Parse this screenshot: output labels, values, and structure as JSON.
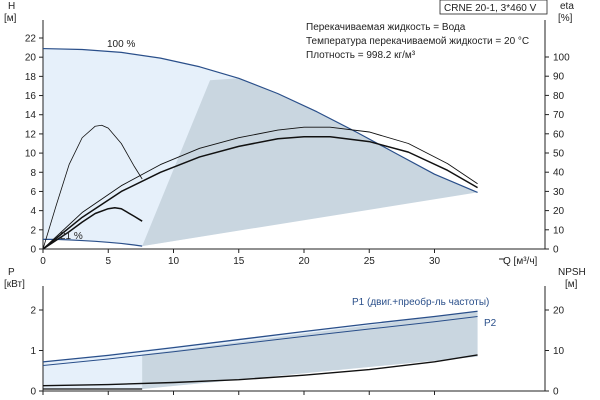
{
  "title": "CRNE 20-1, 3*460 V",
  "info_lines": [
    "Перекачиваемая жидкость = Вода",
    "Температура перекачиваемой жидкости = 20 °C",
    "Плотность = 998.2 кг/м³"
  ],
  "colors": {
    "axis": "#222222",
    "curve_blue": "#2a4f8a",
    "curve_black": "#111111",
    "region_light": "#e6f0fa",
    "region_dark": "#c9d6e0"
  },
  "chart_data": [
    {
      "type": "line",
      "name": "head-efficiency",
      "y_axis_label": {
        "symbol": "H",
        "unit": "[м]"
      },
      "y2_axis_label": {
        "symbol": "eta",
        "unit": "[%]"
      },
      "x_axis_label": "Q [м³/ч]",
      "x_ticks": [
        0,
        5,
        10,
        15,
        20,
        25,
        30
      ],
      "y_ticks": [
        0,
        2,
        4,
        6,
        8,
        10,
        12,
        14,
        16,
        18,
        20,
        22
      ],
      "y2_ticks": [
        0,
        10,
        20,
        30,
        40,
        50,
        60,
        70,
        80,
        90,
        100
      ],
      "xlim": [
        0,
        35
      ],
      "ylim": [
        0,
        24
      ],
      "y2lim": [
        0,
        120
      ],
      "speed_labels": [
        "100 %",
        "21 %"
      ],
      "series": [
        {
          "x": [
            0,
            3,
            6,
            9,
            12,
            15,
            18,
            21,
            24,
            27,
            30,
            33.3
          ],
          "y": [
            20.9,
            20.8,
            20.5,
            19.9,
            19.0,
            17.8,
            16.2,
            14.3,
            12.2,
            10.0,
            7.8,
            5.9
          ]
        },
        {
          "x": [
            0,
            1,
            2,
            3,
            4,
            5,
            6,
            7,
            7.6
          ],
          "y": [
            1.0,
            1.0,
            0.95,
            0.88,
            0.8,
            0.7,
            0.58,
            0.42,
            0.3
          ]
        },
        {
          "x": [
            0,
            3,
            6,
            9,
            12,
            15,
            18,
            20,
            22,
            25,
            28,
            31,
            33.3
          ],
          "y": [
            0,
            3.8,
            6.6,
            8.8,
            10.5,
            11.6,
            12.4,
            12.7,
            12.7,
            12.2,
            11.0,
            8.9,
            6.8
          ]
        },
        {
          "x": [
            0,
            3,
            6,
            9,
            12,
            15,
            18,
            20,
            22,
            25,
            28,
            31,
            33.3
          ],
          "y": [
            0,
            3.3,
            6.0,
            8.0,
            9.6,
            10.7,
            11.5,
            11.7,
            11.7,
            11.2,
            10.1,
            8.2,
            6.4
          ]
        },
        {
          "x": [
            0,
            1,
            2,
            3,
            4,
            4.5,
            5,
            6,
            7,
            7.6
          ],
          "y": [
            0,
            4.5,
            8.8,
            11.6,
            12.8,
            12.9,
            12.6,
            11.0,
            8.6,
            7.3
          ]
        },
        {
          "x": [
            0,
            1,
            2,
            3,
            4,
            5,
            5.5,
            6,
            7,
            7.6
          ],
          "y": [
            0,
            0.9,
            1.8,
            2.8,
            3.7,
            4.2,
            4.3,
            4.2,
            3.4,
            2.9
          ]
        }
      ]
    },
    {
      "type": "line",
      "name": "power-npsh",
      "y_axis_label": {
        "symbol": "P",
        "unit": "[кВт]"
      },
      "y2_axis_label": {
        "symbol": "NPSH",
        "unit": "[м]"
      },
      "y_ticks": [
        0,
        1,
        2
      ],
      "y2_ticks": [
        0,
        10,
        20
      ],
      "xlim": [
        0,
        35
      ],
      "ylim": [
        0,
        2.5
      ],
      "y2lim": [
        0,
        25
      ],
      "series": [
        {
          "name": "P1 (двиг.+преобр-ль частоты)",
          "x": [
            0,
            5,
            10,
            15,
            20,
            25,
            30,
            33.3
          ],
          "y": [
            0.72,
            0.88,
            1.07,
            1.27,
            1.47,
            1.66,
            1.84,
            1.97
          ]
        },
        {
          "name": "P2",
          "x": [
            0,
            5,
            10,
            15,
            20,
            25,
            30,
            33.3
          ],
          "y": [
            0.63,
            0.79,
            0.97,
            1.16,
            1.35,
            1.53,
            1.71,
            1.84
          ]
        },
        {
          "x": [
            0,
            5,
            10,
            15,
            20,
            25,
            30,
            33.3
          ],
          "y": [
            0.13,
            0.16,
            0.21,
            0.28,
            0.39,
            0.53,
            0.72,
            0.89
          ]
        },
        {
          "x": [
            0,
            2,
            4,
            6,
            7.6
          ],
          "y": [
            0.05,
            0.05,
            0.05,
            0.05,
            0.05
          ]
        }
      ]
    }
  ]
}
